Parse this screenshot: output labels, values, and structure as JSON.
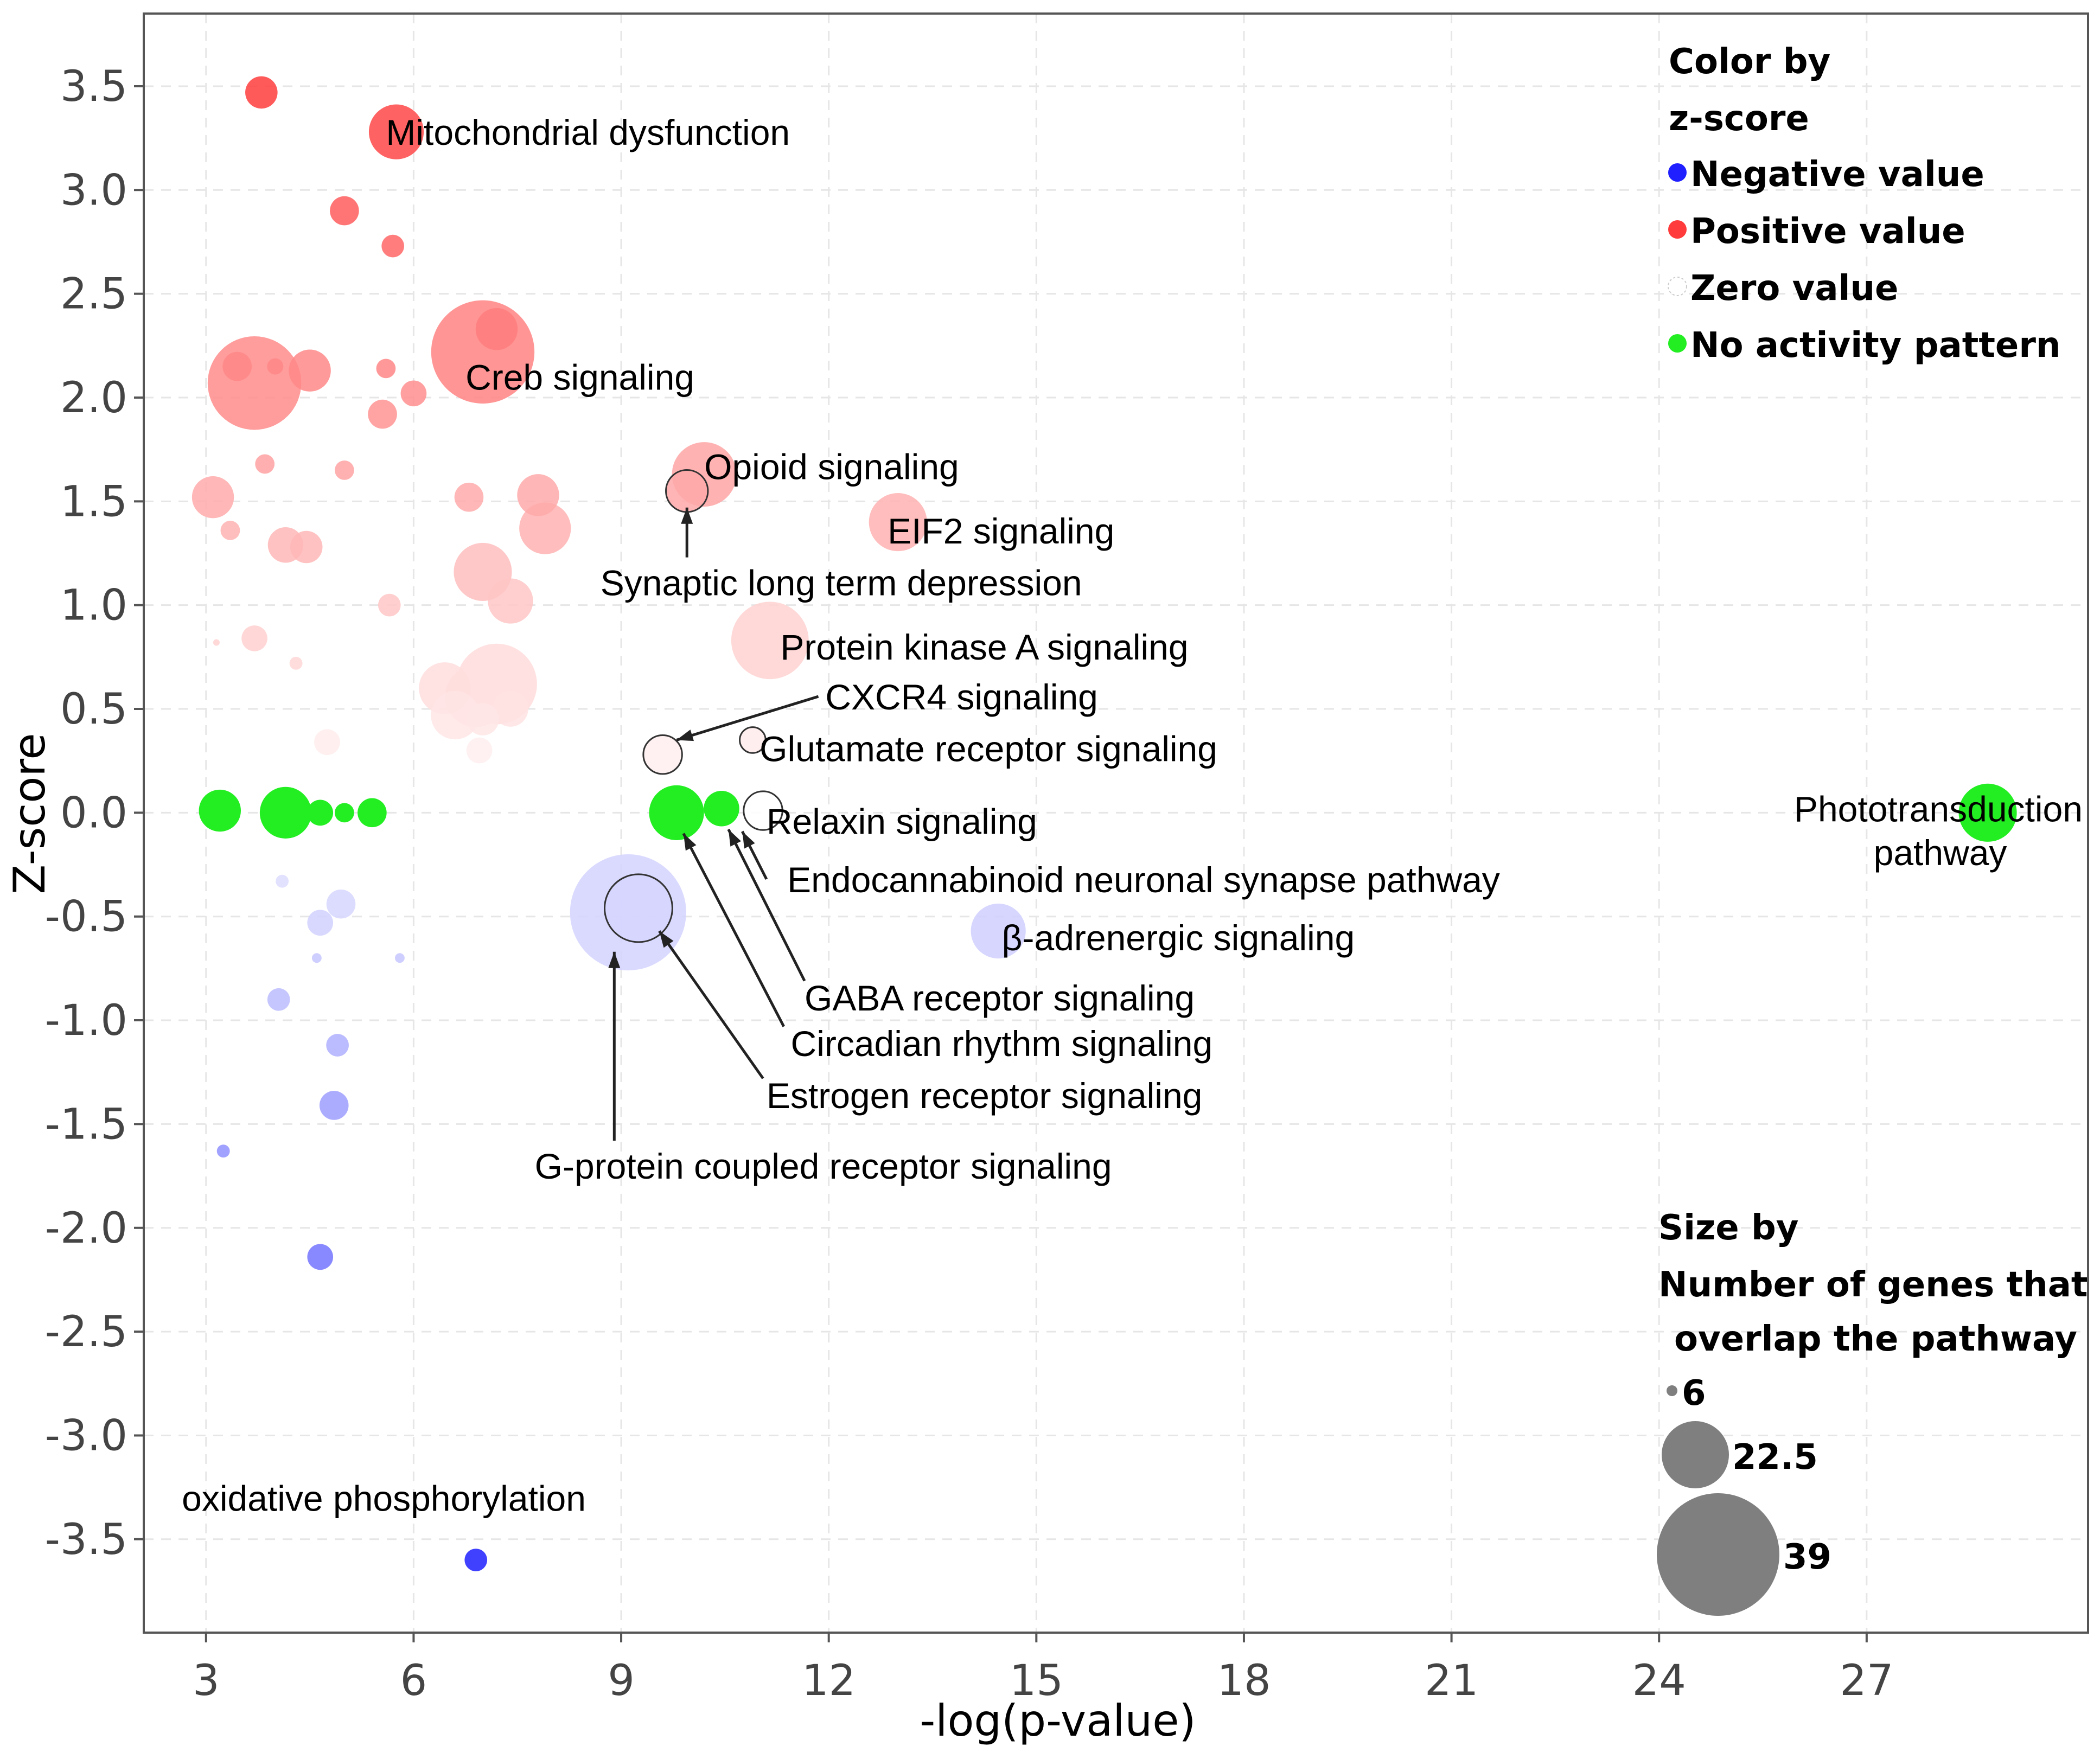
{
  "chart_data": {
    "type": "scatter",
    "title": "",
    "xlabel": "-log(p-value)",
    "ylabel": "Z-score",
    "xlim": [
      2.1,
      30.2
    ],
    "ylim": [
      -3.95,
      3.85
    ],
    "xticks": [
      3,
      6,
      9,
      12,
      15,
      18,
      21,
      24,
      27
    ],
    "yticks": [
      3.5,
      3.0,
      2.5,
      2.0,
      1.5,
      1.0,
      0.5,
      0.0,
      -0.5,
      -1.0,
      -1.5,
      -2.0,
      -2.5,
      -3.0,
      -3.5
    ],
    "ytick_labels": [
      "3.5",
      "3.0",
      "2.5",
      "2.0",
      "1.5",
      "1.0",
      "0.5",
      "0.0",
      "-0.5",
      "-1.0",
      "-1.5",
      "-2.0",
      "-2.5",
      "-3.0",
      "-3.5"
    ],
    "grid": true,
    "colors": {
      "negative": "#1f1fff",
      "positive": "#ff3b3b",
      "zero": "#ffffff",
      "no_activity": "#22ee22"
    },
    "size_scale": {
      "min_genes": 6,
      "max_genes": 39
    },
    "points": [
      {
        "x": 3.8,
        "y": 3.47,
        "size": 11,
        "z": 3.47
      },
      {
        "x": 5.75,
        "y": 3.28,
        "size": 18,
        "z": 3.28
      },
      {
        "x": 5.0,
        "y": 2.9,
        "size": 10,
        "z": 2.9
      },
      {
        "x": 5.7,
        "y": 2.73,
        "size": 8,
        "z": 2.73
      },
      {
        "x": 7.2,
        "y": 2.33,
        "size": 14,
        "z": 2.33
      },
      {
        "x": 7.0,
        "y": 2.22,
        "size": 33,
        "z": 2.22
      },
      {
        "x": 3.7,
        "y": 2.07,
        "size": 30,
        "z": 2.07
      },
      {
        "x": 3.45,
        "y": 2.15,
        "size": 10,
        "z": 2.15
      },
      {
        "x": 4.0,
        "y": 2.15,
        "size": 6,
        "z": 2.15
      },
      {
        "x": 4.5,
        "y": 2.13,
        "size": 14,
        "z": 2.13
      },
      {
        "x": 5.6,
        "y": 2.14,
        "size": 7,
        "z": 2.14
      },
      {
        "x": 6.0,
        "y": 2.02,
        "size": 9,
        "z": 2.02
      },
      {
        "x": 5.55,
        "y": 1.92,
        "size": 10,
        "z": 1.92
      },
      {
        "x": 3.85,
        "y": 1.68,
        "size": 7,
        "z": 1.68
      },
      {
        "x": 5.0,
        "y": 1.65,
        "size": 7,
        "z": 1.65
      },
      {
        "x": 10.2,
        "y": 1.63,
        "size": 21,
        "z": 1.63
      },
      {
        "x": 9.95,
        "y": 1.55,
        "size": 14,
        "z": 1.55,
        "outlined": true
      },
      {
        "x": 3.1,
        "y": 1.52,
        "size": 14,
        "z": 1.52
      },
      {
        "x": 6.8,
        "y": 1.52,
        "size": 10,
        "z": 1.52
      },
      {
        "x": 7.8,
        "y": 1.53,
        "size": 14,
        "z": 1.53
      },
      {
        "x": 13.0,
        "y": 1.4,
        "size": 19,
        "z": 1.4
      },
      {
        "x": 7.9,
        "y": 1.37,
        "size": 17,
        "z": 1.37
      },
      {
        "x": 3.35,
        "y": 1.36,
        "size": 7,
        "z": 1.36
      },
      {
        "x": 4.15,
        "y": 1.29,
        "size": 12,
        "z": 1.29
      },
      {
        "x": 4.45,
        "y": 1.28,
        "size": 11,
        "z": 1.28
      },
      {
        "x": 7.0,
        "y": 1.16,
        "size": 19,
        "z": 1.16
      },
      {
        "x": 7.4,
        "y": 1.02,
        "size": 15,
        "z": 1.02
      },
      {
        "x": 5.65,
        "y": 1.0,
        "size": 8,
        "z": 1.0
      },
      {
        "x": 11.15,
        "y": 0.83,
        "size": 25,
        "z": 0.83
      },
      {
        "x": 3.7,
        "y": 0.84,
        "size": 9,
        "z": 0.84
      },
      {
        "x": 3.15,
        "y": 0.82,
        "size": 3,
        "z": 0.82
      },
      {
        "x": 4.3,
        "y": 0.72,
        "size": 5,
        "z": 0.72
      },
      {
        "x": 7.2,
        "y": 0.62,
        "size": 26,
        "z": 0.62
      },
      {
        "x": 6.9,
        "y": 0.56,
        "size": 20,
        "z": 0.56
      },
      {
        "x": 6.45,
        "y": 0.6,
        "size": 17,
        "z": 0.6
      },
      {
        "x": 6.6,
        "y": 0.47,
        "size": 16,
        "z": 0.47
      },
      {
        "x": 7.0,
        "y": 0.45,
        "size": 11,
        "z": 0.45
      },
      {
        "x": 7.4,
        "y": 0.5,
        "size": 12,
        "z": 0.5
      },
      {
        "x": 4.75,
        "y": 0.34,
        "size": 9,
        "z": 0.34
      },
      {
        "x": 10.9,
        "y": 0.35,
        "size": 9,
        "z": 0.35,
        "outlined": true
      },
      {
        "x": 9.6,
        "y": 0.28,
        "size": 13,
        "z": 0.28,
        "outlined": true
      },
      {
        "x": 6.95,
        "y": 0.3,
        "size": 9,
        "z": 0.3
      },
      {
        "x": 3.2,
        "y": 0.01,
        "size": 14,
        "z": 0.0,
        "no_activity": true
      },
      {
        "x": 4.15,
        "y": 0.0,
        "size": 17,
        "z": 0.0,
        "no_activity": true
      },
      {
        "x": 4.65,
        "y": 0.0,
        "size": 9,
        "z": 0.0,
        "no_activity": true
      },
      {
        "x": 5.0,
        "y": 0.0,
        "size": 7,
        "z": 0.0,
        "no_activity": true
      },
      {
        "x": 5.4,
        "y": 0.0,
        "size": 10,
        "z": 0.0,
        "no_activity": true
      },
      {
        "x": 9.8,
        "y": 0.0,
        "size": 18,
        "z": 0.0,
        "no_activity": true
      },
      {
        "x": 10.45,
        "y": 0.02,
        "size": 12,
        "z": 0.0,
        "no_activity": true
      },
      {
        "x": 11.05,
        "y": 0.01,
        "size": 13,
        "z": 0.0,
        "outlined": true
      },
      {
        "x": 28.75,
        "y": 0.0,
        "size": 19,
        "z": 0.0,
        "no_activity": true
      },
      {
        "x": 4.1,
        "y": -0.33,
        "size": 5,
        "z": -0.33
      },
      {
        "x": 4.95,
        "y": -0.44,
        "size": 10,
        "z": -0.44
      },
      {
        "x": 4.65,
        "y": -0.53,
        "size": 9,
        "z": -0.53
      },
      {
        "x": 9.1,
        "y": -0.48,
        "size": 37,
        "z": -0.48
      },
      {
        "x": 9.25,
        "y": -0.46,
        "size": 22,
        "z": -0.46,
        "outlined": true
      },
      {
        "x": 14.45,
        "y": -0.57,
        "size": 18,
        "z": -0.57
      },
      {
        "x": 4.6,
        "y": -0.7,
        "size": 4,
        "z": -0.7
      },
      {
        "x": 5.8,
        "y": -0.7,
        "size": 4,
        "z": -0.7
      },
      {
        "x": 4.05,
        "y": -0.9,
        "size": 8,
        "z": -0.9
      },
      {
        "x": 4.9,
        "y": -1.12,
        "size": 8,
        "z": -1.12
      },
      {
        "x": 4.85,
        "y": -1.41,
        "size": 10,
        "z": -1.41
      },
      {
        "x": 3.25,
        "y": -1.63,
        "size": 5,
        "z": -1.63
      },
      {
        "x": 4.65,
        "y": -2.14,
        "size": 9,
        "z": -2.14
      },
      {
        "x": 6.9,
        "y": -3.6,
        "size": 8,
        "z": -3.6
      }
    ],
    "annotations": [
      {
        "text": "Mitochondrial dysfunction",
        "x": 5.6,
        "y": 3.28
      },
      {
        "text": "Creb signaling",
        "x": 6.75,
        "y": 2.1
      },
      {
        "text": "Opioid signaling",
        "x": 10.2,
        "y": 1.67
      },
      {
        "text": "EIF2 signaling",
        "x": 12.85,
        "y": 1.36
      },
      {
        "text": "Synaptic long term depression",
        "x": 8.7,
        "y": 1.11
      },
      {
        "text": "Protein kinase A signaling",
        "x": 11.3,
        "y": 0.8
      },
      {
        "text": "CXCR4 signaling",
        "x": 11.95,
        "y": 0.56
      },
      {
        "text": "Glutamate receptor signaling",
        "x": 11.0,
        "y": 0.31
      },
      {
        "text": "Relaxin signaling",
        "x": 11.1,
        "y": -0.04
      },
      {
        "text": "Phototransduction",
        "x": 25.95,
        "y": 0.02
      },
      {
        "text": "pathway",
        "x": 27.1,
        "y": -0.19
      },
      {
        "text": "Endocannabinoid neuronal synapse pathway",
        "x": 11.4,
        "y": -0.32
      },
      {
        "text": "β-adrenergic signaling",
        "x": 14.5,
        "y": -0.6
      },
      {
        "text": "GABA receptor signaling",
        "x": 11.65,
        "y": -0.89
      },
      {
        "text": "Circadian rhythm signaling",
        "x": 11.45,
        "y": -1.11
      },
      {
        "text": "Estrogen receptor signaling",
        "x": 11.1,
        "y": -1.36
      },
      {
        "text": "G-protein coupled receptor signaling",
        "x": 7.75,
        "y": -1.7
      },
      {
        "text": "oxidative phosphorylation",
        "x": 2.65,
        "y": -3.3
      }
    ],
    "arrows": [
      {
        "from": [
          9.95,
          1.23
        ],
        "to": [
          9.95,
          1.47
        ]
      },
      {
        "from": [
          11.85,
          0.56
        ],
        "to": [
          9.8,
          0.35
        ]
      },
      {
        "from": [
          11.1,
          -0.32
        ],
        "to": [
          10.75,
          -0.09
        ]
      },
      {
        "from": [
          11.65,
          -0.81
        ],
        "to": [
          10.55,
          -0.08
        ]
      },
      {
        "from": [
          11.35,
          -1.03
        ],
        "to": [
          9.9,
          -0.1
        ]
      },
      {
        "from": [
          11.05,
          -1.28
        ],
        "to": [
          9.55,
          -0.57
        ]
      },
      {
        "from": [
          8.9,
          -1.58
        ],
        "to": [
          8.9,
          -0.67
        ]
      }
    ],
    "legend": {
      "color": {
        "title_line1": "Color by",
        "title_line2": "z-score",
        "items": [
          {
            "label": "Negative value",
            "color": "#1f1fff"
          },
          {
            "label": "Positive value",
            "color": "#ff3b3b"
          },
          {
            "label": "Zero value",
            "color": "#ffffff"
          },
          {
            "label": "No activity pattern",
            "color": "#22ee22"
          }
        ]
      },
      "size": {
        "title_line1": "Size by",
        "title_line2": "Number of genes that",
        "title_line3": "overlap the pathway",
        "items": [
          {
            "label": "6",
            "value": 6
          },
          {
            "label": "22.5",
            "value": 22.5
          },
          {
            "label": "39",
            "value": 39
          }
        ],
        "color": "#7f7f7f"
      },
      "placement": "right"
    }
  }
}
